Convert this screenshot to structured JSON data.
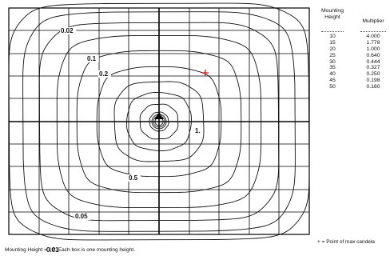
{
  "legend": {
    "mounting_height_label": "Mounting Height",
    "multiplier_label": "Multiplier",
    "rows": [
      {
        "height": "10",
        "multiplier": "4.000"
      },
      {
        "height": "15",
        "multiplier": "1.778"
      },
      {
        "height": "20",
        "multiplier": "1.000"
      },
      {
        "height": "25",
        "multiplier": "0.640"
      },
      {
        "height": "30",
        "multiplier": "0.444"
      },
      {
        "height": "35",
        "multiplier": "0.327"
      },
      {
        "height": "40",
        "multiplier": "0.250"
      },
      {
        "height": "45",
        "multiplier": "0.198"
      },
      {
        "height": "50",
        "multiplier": "0.160"
      }
    ]
  },
  "point_note": "+ = Point of max candela",
  "caption": "Mounting Height = 20'.  Each box is one mounting height.",
  "contour_labels": [
    "0.02",
    "0.1",
    "0.2",
    "1.",
    "0.5",
    "0.05",
    "0.01"
  ],
  "colors": {
    "max_candela_marker": "#e02020",
    "lines": "#111111"
  },
  "icons": {
    "max_candela": "plus-marker",
    "luminaire": "arrow-up-marker"
  }
}
